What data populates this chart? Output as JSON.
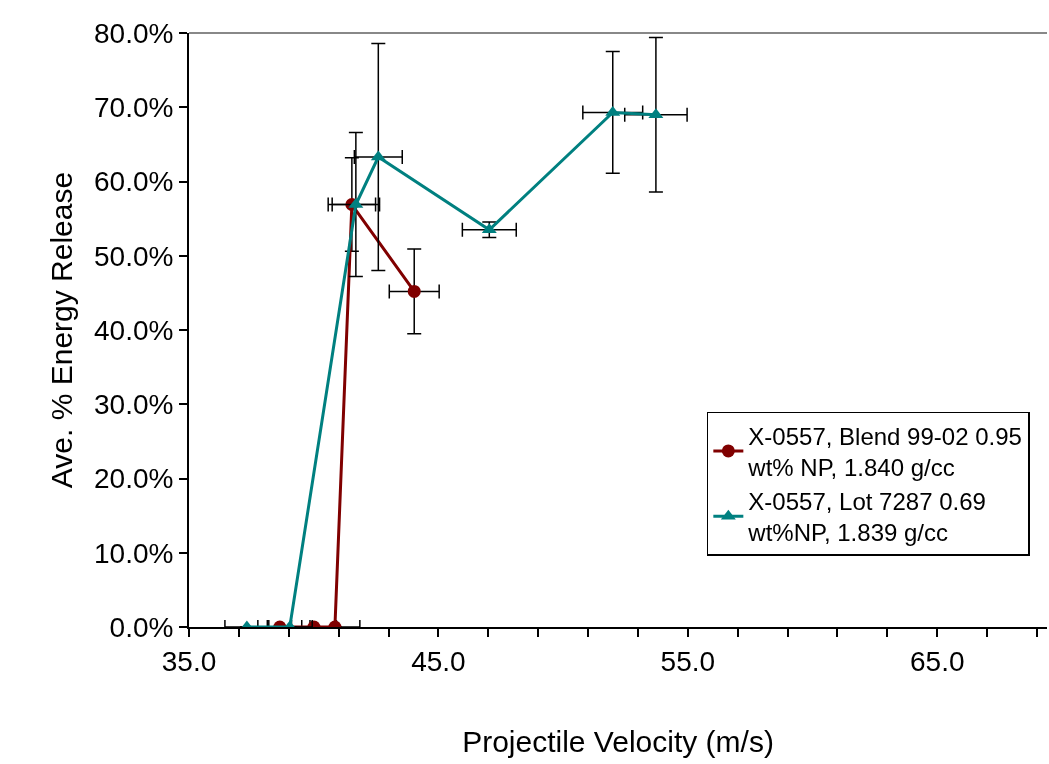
{
  "chart_data": {
    "type": "line",
    "xlabel": "Projectile Velocity (m/s)",
    "ylabel": "Ave. % Energy Release",
    "xlim": [
      35,
      69.4
    ],
    "ylim": [
      0,
      80
    ],
    "xticks": [
      {
        "value": 35,
        "label": "35.0"
      },
      {
        "value": 37,
        "label": null
      },
      {
        "value": 39,
        "label": null
      },
      {
        "value": 41,
        "label": null
      },
      {
        "value": 43,
        "label": null
      },
      {
        "value": 45,
        "label": "45.0"
      },
      {
        "value": 47,
        "label": null
      },
      {
        "value": 49,
        "label": null
      },
      {
        "value": 51,
        "label": null
      },
      {
        "value": 53,
        "label": null
      },
      {
        "value": 55,
        "label": "55.0"
      },
      {
        "value": 57,
        "label": null
      },
      {
        "value": 59,
        "label": null
      },
      {
        "value": 61,
        "label": null
      },
      {
        "value": 63,
        "label": null
      },
      {
        "value": 65,
        "label": "65.0"
      },
      {
        "value": 67,
        "label": null
      },
      {
        "value": 69,
        "label": null
      }
    ],
    "yticks": [
      {
        "value": 0,
        "label": "0.0%"
      },
      {
        "value": 10,
        "label": "10.0%"
      },
      {
        "value": 20,
        "label": "20.0%"
      },
      {
        "value": 30,
        "label": "30.0%"
      },
      {
        "value": 40,
        "label": "40.0%"
      },
      {
        "value": 50,
        "label": "50.0%"
      },
      {
        "value": 60,
        "label": "60.0%"
      },
      {
        "value": 70,
        "label": "70.0%"
      },
      {
        "value": 80,
        "label": "80.0%"
      }
    ],
    "legend": "bottom right",
    "line_style": "solid",
    "series": [
      {
        "name": "X-0557, Blend 99-02 0.95\nwt% NP, 1.840 g/cc",
        "color": "#800000",
        "marker": "circle",
        "x": [
          38.64,
          40.01,
          40.85,
          41.53,
          44.03
        ],
        "values": [
          0,
          0,
          0,
          56.9,
          45.2
        ],
        "errors": [
          null,
          null,
          null,
          6.3,
          5.7
        ],
        "xerrors": [
          0.88,
          0.9,
          1.0,
          0.95,
          1.0
        ]
      },
      {
        "name": "X-0557, Lot 7287 0.69\nwt%NP, 1.839 g/cc",
        "color": "#008080",
        "marker": "triangle",
        "x": [
          37.32,
          39.04,
          41.69,
          42.59,
          47.04,
          51.99,
          53.72
        ],
        "values": [
          0,
          0,
          56.9,
          63.3,
          53.5,
          69.3,
          69.0
        ],
        "errors": [
          null,
          null,
          9.7,
          15.3,
          1.05,
          8.2,
          10.4
        ],
        "xerrors": [
          0.88,
          0.9,
          0.95,
          0.96,
          1.08,
          1.2,
          1.25
        ]
      }
    ]
  }
}
